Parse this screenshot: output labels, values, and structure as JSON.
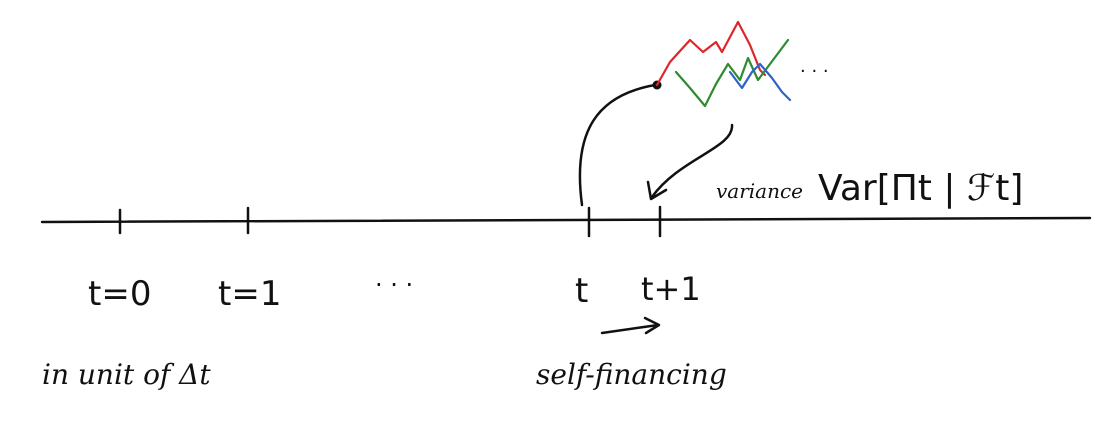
{
  "timeline": {
    "ticks": [
      {
        "label": "t=0"
      },
      {
        "label": "t=1"
      },
      {
        "label": ". . ."
      },
      {
        "label": "t"
      },
      {
        "label": "t+1"
      }
    ]
  },
  "unit_note": "in unit of Δt",
  "self_financing_label": "self-financing",
  "variance": {
    "word": "variance",
    "expression": "Var[Πt | ℱt]"
  },
  "paths_continuation": ". . .",
  "colors": {
    "ink": "#111111",
    "path_red": "#e0252a",
    "path_green": "#2e8b2e",
    "path_blue": "#2f62c8"
  }
}
